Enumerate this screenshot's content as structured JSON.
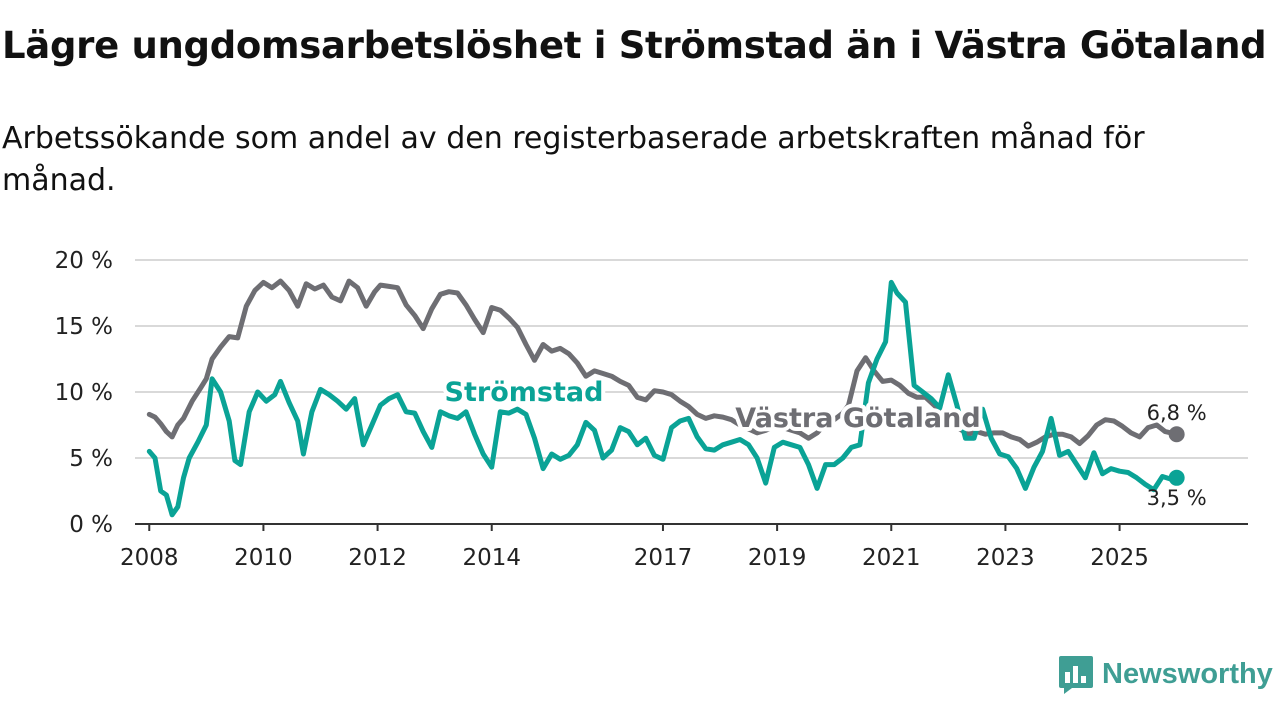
{
  "title": "Lägre ungdomsarbetslöshet i Strömstad än i Västra Götaland",
  "subtitle": "Arbetssökande som andel av den registerbaserade arbetskraften månad för månad.",
  "brand": {
    "name": "Newsworthy",
    "color": "#3f9e94"
  },
  "chart_data": {
    "type": "line",
    "title": "Lägre ungdomsarbetslöshet i Strömstad än i Västra Götaland",
    "xlabel": "",
    "ylabel": "",
    "xlim": [
      2007.75,
      2027.25
    ],
    "ylim": [
      0,
      20
    ],
    "grid": true,
    "x_ticks": [
      2008,
      2010,
      2012,
      2014,
      2017,
      2019,
      2021,
      2023,
      2025
    ],
    "x_tick_labels": [
      "2008",
      "2010",
      "2012",
      "2014",
      "2017",
      "2019",
      "2021",
      "2023",
      "2025"
    ],
    "y_ticks": [
      0,
      5,
      10,
      15,
      20
    ],
    "y_tick_labels": [
      "0 %",
      "5 %",
      "10 %",
      "15 %",
      "20 %"
    ],
    "series": [
      {
        "name": "Västra Götaland",
        "color": "#6e6e73",
        "end_label": "6,8 %",
        "points": [
          [
            2008.0,
            8.3
          ],
          [
            2008.1,
            8.1
          ],
          [
            2008.2,
            7.6
          ],
          [
            2008.3,
            7.0
          ],
          [
            2008.4,
            6.6
          ],
          [
            2008.5,
            7.5
          ],
          [
            2008.6,
            8.0
          ],
          [
            2008.75,
            9.3
          ],
          [
            2008.9,
            10.3
          ],
          [
            2009.0,
            11.0
          ],
          [
            2009.1,
            12.5
          ],
          [
            2009.25,
            13.4
          ],
          [
            2009.4,
            14.2
          ],
          [
            2009.55,
            14.1
          ],
          [
            2009.7,
            16.5
          ],
          [
            2009.85,
            17.7
          ],
          [
            2010.0,
            18.3
          ],
          [
            2010.15,
            17.9
          ],
          [
            2010.3,
            18.4
          ],
          [
            2010.45,
            17.7
          ],
          [
            2010.6,
            16.5
          ],
          [
            2010.75,
            18.2
          ],
          [
            2010.9,
            17.8
          ],
          [
            2011.05,
            18.1
          ],
          [
            2011.2,
            17.2
          ],
          [
            2011.35,
            16.9
          ],
          [
            2011.5,
            18.4
          ],
          [
            2011.65,
            17.9
          ],
          [
            2011.8,
            16.5
          ],
          [
            2011.95,
            17.6
          ],
          [
            2012.05,
            18.1
          ],
          [
            2012.2,
            18.0
          ],
          [
            2012.35,
            17.9
          ],
          [
            2012.5,
            16.6
          ],
          [
            2012.65,
            15.8
          ],
          [
            2012.8,
            14.8
          ],
          [
            2012.95,
            16.3
          ],
          [
            2013.1,
            17.4
          ],
          [
            2013.25,
            17.6
          ],
          [
            2013.4,
            17.5
          ],
          [
            2013.55,
            16.6
          ],
          [
            2013.7,
            15.5
          ],
          [
            2013.85,
            14.5
          ],
          [
            2014.0,
            16.4
          ],
          [
            2014.15,
            16.2
          ],
          [
            2014.3,
            15.6
          ],
          [
            2014.45,
            14.9
          ],
          [
            2014.6,
            13.6
          ],
          [
            2014.75,
            12.4
          ],
          [
            2014.9,
            13.6
          ],
          [
            2015.05,
            13.1
          ],
          [
            2015.2,
            13.3
          ],
          [
            2015.35,
            12.9
          ],
          [
            2015.5,
            12.2
          ],
          [
            2015.65,
            11.2
          ],
          [
            2015.8,
            11.6
          ],
          [
            2015.95,
            11.4
          ],
          [
            2016.1,
            11.2
          ],
          [
            2016.25,
            10.8
          ],
          [
            2016.4,
            10.5
          ],
          [
            2016.55,
            9.6
          ],
          [
            2016.7,
            9.4
          ],
          [
            2016.85,
            10.1
          ],
          [
            2017.0,
            10.0
          ],
          [
            2017.15,
            9.8
          ],
          [
            2017.3,
            9.3
          ],
          [
            2017.45,
            8.9
          ],
          [
            2017.6,
            8.3
          ],
          [
            2017.75,
            8.0
          ],
          [
            2017.9,
            8.2
          ],
          [
            2018.05,
            8.1
          ],
          [
            2018.2,
            7.9
          ],
          [
            2018.35,
            7.5
          ],
          [
            2018.5,
            7.2
          ],
          [
            2018.65,
            6.9
          ],
          [
            2018.8,
            7.1
          ],
          [
            2018.95,
            7.4
          ],
          [
            2019.1,
            7.3
          ],
          [
            2019.25,
            7.1
          ],
          [
            2019.4,
            6.9
          ],
          [
            2019.55,
            6.5
          ],
          [
            2019.7,
            6.9
          ],
          [
            2019.85,
            7.6
          ],
          [
            2020.0,
            7.9
          ],
          [
            2020.15,
            8.4
          ],
          [
            2020.25,
            9.0
          ],
          [
            2020.4,
            11.6
          ],
          [
            2020.55,
            12.6
          ],
          [
            2020.7,
            11.6
          ],
          [
            2020.85,
            10.8
          ],
          [
            2021.0,
            10.9
          ],
          [
            2021.15,
            10.5
          ],
          [
            2021.3,
            9.9
          ],
          [
            2021.45,
            9.6
          ],
          [
            2021.6,
            9.6
          ],
          [
            2021.75,
            9.0
          ],
          [
            2021.9,
            8.4
          ],
          [
            2022.05,
            7.7
          ],
          [
            2022.2,
            7.2
          ],
          [
            2022.35,
            6.8
          ],
          [
            2022.5,
            7.0
          ],
          [
            2022.65,
            6.8
          ],
          [
            2022.8,
            6.9
          ],
          [
            2022.95,
            6.9
          ],
          [
            2023.1,
            6.6
          ],
          [
            2023.25,
            6.4
          ],
          [
            2023.4,
            5.9
          ],
          [
            2023.55,
            6.2
          ],
          [
            2023.7,
            6.6
          ],
          [
            2023.85,
            6.8
          ],
          [
            2024.0,
            6.8
          ],
          [
            2024.15,
            6.6
          ],
          [
            2024.3,
            6.1
          ],
          [
            2024.45,
            6.7
          ],
          [
            2024.6,
            7.5
          ],
          [
            2024.75,
            7.9
          ],
          [
            2024.9,
            7.8
          ],
          [
            2025.05,
            7.4
          ],
          [
            2025.2,
            6.9
          ],
          [
            2025.35,
            6.6
          ],
          [
            2025.5,
            7.3
          ],
          [
            2025.65,
            7.5
          ],
          [
            2025.8,
            7.0
          ],
          [
            2026.0,
            6.8
          ]
        ]
      },
      {
        "name": "Strömstad",
        "color": "#0aa396",
        "end_label": "3,5 %",
        "points": [
          [
            2008.0,
            5.5
          ],
          [
            2008.1,
            5.0
          ],
          [
            2008.2,
            2.5
          ],
          [
            2008.3,
            2.2
          ],
          [
            2008.4,
            0.7
          ],
          [
            2008.5,
            1.3
          ],
          [
            2008.6,
            3.5
          ],
          [
            2008.7,
            5.0
          ],
          [
            2008.85,
            6.2
          ],
          [
            2009.0,
            7.5
          ],
          [
            2009.1,
            11.0
          ],
          [
            2009.25,
            10.0
          ],
          [
            2009.4,
            7.8
          ],
          [
            2009.5,
            4.8
          ],
          [
            2009.6,
            4.5
          ],
          [
            2009.75,
            8.5
          ],
          [
            2009.9,
            10.0
          ],
          [
            2010.05,
            9.3
          ],
          [
            2010.2,
            9.8
          ],
          [
            2010.3,
            10.8
          ],
          [
            2010.45,
            9.2
          ],
          [
            2010.6,
            7.8
          ],
          [
            2010.7,
            5.3
          ],
          [
            2010.85,
            8.5
          ],
          [
            2011.0,
            10.2
          ],
          [
            2011.15,
            9.8
          ],
          [
            2011.3,
            9.3
          ],
          [
            2011.45,
            8.7
          ],
          [
            2011.6,
            9.5
          ],
          [
            2011.75,
            6.0
          ],
          [
            2011.9,
            7.5
          ],
          [
            2012.05,
            9.0
          ],
          [
            2012.2,
            9.5
          ],
          [
            2012.35,
            9.8
          ],
          [
            2012.5,
            8.5
          ],
          [
            2012.65,
            8.4
          ],
          [
            2012.8,
            7.0
          ],
          [
            2012.95,
            5.8
          ],
          [
            2013.1,
            8.5
          ],
          [
            2013.25,
            8.2
          ],
          [
            2013.4,
            8.0
          ],
          [
            2013.55,
            8.5
          ],
          [
            2013.7,
            6.8
          ],
          [
            2013.85,
            5.3
          ],
          [
            2014.0,
            4.3
          ],
          [
            2014.15,
            8.5
          ],
          [
            2014.3,
            8.4
          ],
          [
            2014.45,
            8.7
          ],
          [
            2014.6,
            8.3
          ],
          [
            2014.75,
            6.5
          ],
          [
            2014.9,
            4.2
          ],
          [
            2015.05,
            5.3
          ],
          [
            2015.2,
            4.9
          ],
          [
            2015.35,
            5.2
          ],
          [
            2015.5,
            6.0
          ],
          [
            2015.65,
            7.7
          ],
          [
            2015.8,
            7.1
          ],
          [
            2015.95,
            5.0
          ],
          [
            2016.1,
            5.6
          ],
          [
            2016.25,
            7.3
          ],
          [
            2016.4,
            7.0
          ],
          [
            2016.55,
            6.0
          ],
          [
            2016.7,
            6.5
          ],
          [
            2016.85,
            5.2
          ],
          [
            2017.0,
            4.9
          ],
          [
            2017.15,
            7.3
          ],
          [
            2017.3,
            7.8
          ],
          [
            2017.45,
            8.0
          ],
          [
            2017.6,
            6.6
          ],
          [
            2017.75,
            5.7
          ],
          [
            2017.9,
            5.6
          ],
          [
            2018.05,
            6.0
          ],
          [
            2018.2,
            6.2
          ],
          [
            2018.35,
            6.4
          ],
          [
            2018.5,
            6.0
          ],
          [
            2018.65,
            5.0
          ],
          [
            2018.8,
            3.1
          ],
          [
            2018.95,
            5.8
          ],
          [
            2019.1,
            6.2
          ],
          [
            2019.25,
            6.0
          ],
          [
            2019.4,
            5.8
          ],
          [
            2019.55,
            4.5
          ],
          [
            2019.7,
            2.7
          ],
          [
            2019.85,
            4.5
          ],
          [
            2020.0,
            4.5
          ],
          [
            2020.15,
            5.0
          ],
          [
            2020.3,
            5.8
          ],
          [
            2020.45,
            6.0
          ],
          [
            2020.6,
            10.7
          ],
          [
            2020.75,
            12.5
          ],
          [
            2020.9,
            13.8
          ],
          [
            2021.0,
            18.3
          ],
          [
            2021.1,
            17.5
          ],
          [
            2021.25,
            16.8
          ],
          [
            2021.4,
            10.5
          ],
          [
            2021.55,
            10.0
          ],
          [
            2021.7,
            9.5
          ],
          [
            2021.85,
            8.8
          ],
          [
            2022.0,
            11.3
          ],
          [
            2022.15,
            9.0
          ],
          [
            2022.3,
            6.5
          ],
          [
            2022.45,
            6.5
          ],
          [
            2022.6,
            8.7
          ],
          [
            2022.75,
            6.5
          ],
          [
            2022.9,
            5.3
          ],
          [
            2023.05,
            5.1
          ],
          [
            2023.2,
            4.2
          ],
          [
            2023.35,
            2.7
          ],
          [
            2023.5,
            4.3
          ],
          [
            2023.65,
            5.5
          ],
          [
            2023.8,
            8.0
          ],
          [
            2023.95,
            5.2
          ],
          [
            2024.1,
            5.5
          ],
          [
            2024.25,
            4.5
          ],
          [
            2024.4,
            3.5
          ],
          [
            2024.55,
            5.4
          ],
          [
            2024.7,
            3.8
          ],
          [
            2024.85,
            4.2
          ],
          [
            2025.0,
            4.0
          ],
          [
            2025.15,
            3.9
          ],
          [
            2025.3,
            3.5
          ],
          [
            2025.45,
            3.0
          ],
          [
            2025.6,
            2.6
          ],
          [
            2025.75,
            3.6
          ],
          [
            2025.9,
            3.4
          ],
          [
            2026.0,
            3.5
          ]
        ]
      }
    ]
  }
}
